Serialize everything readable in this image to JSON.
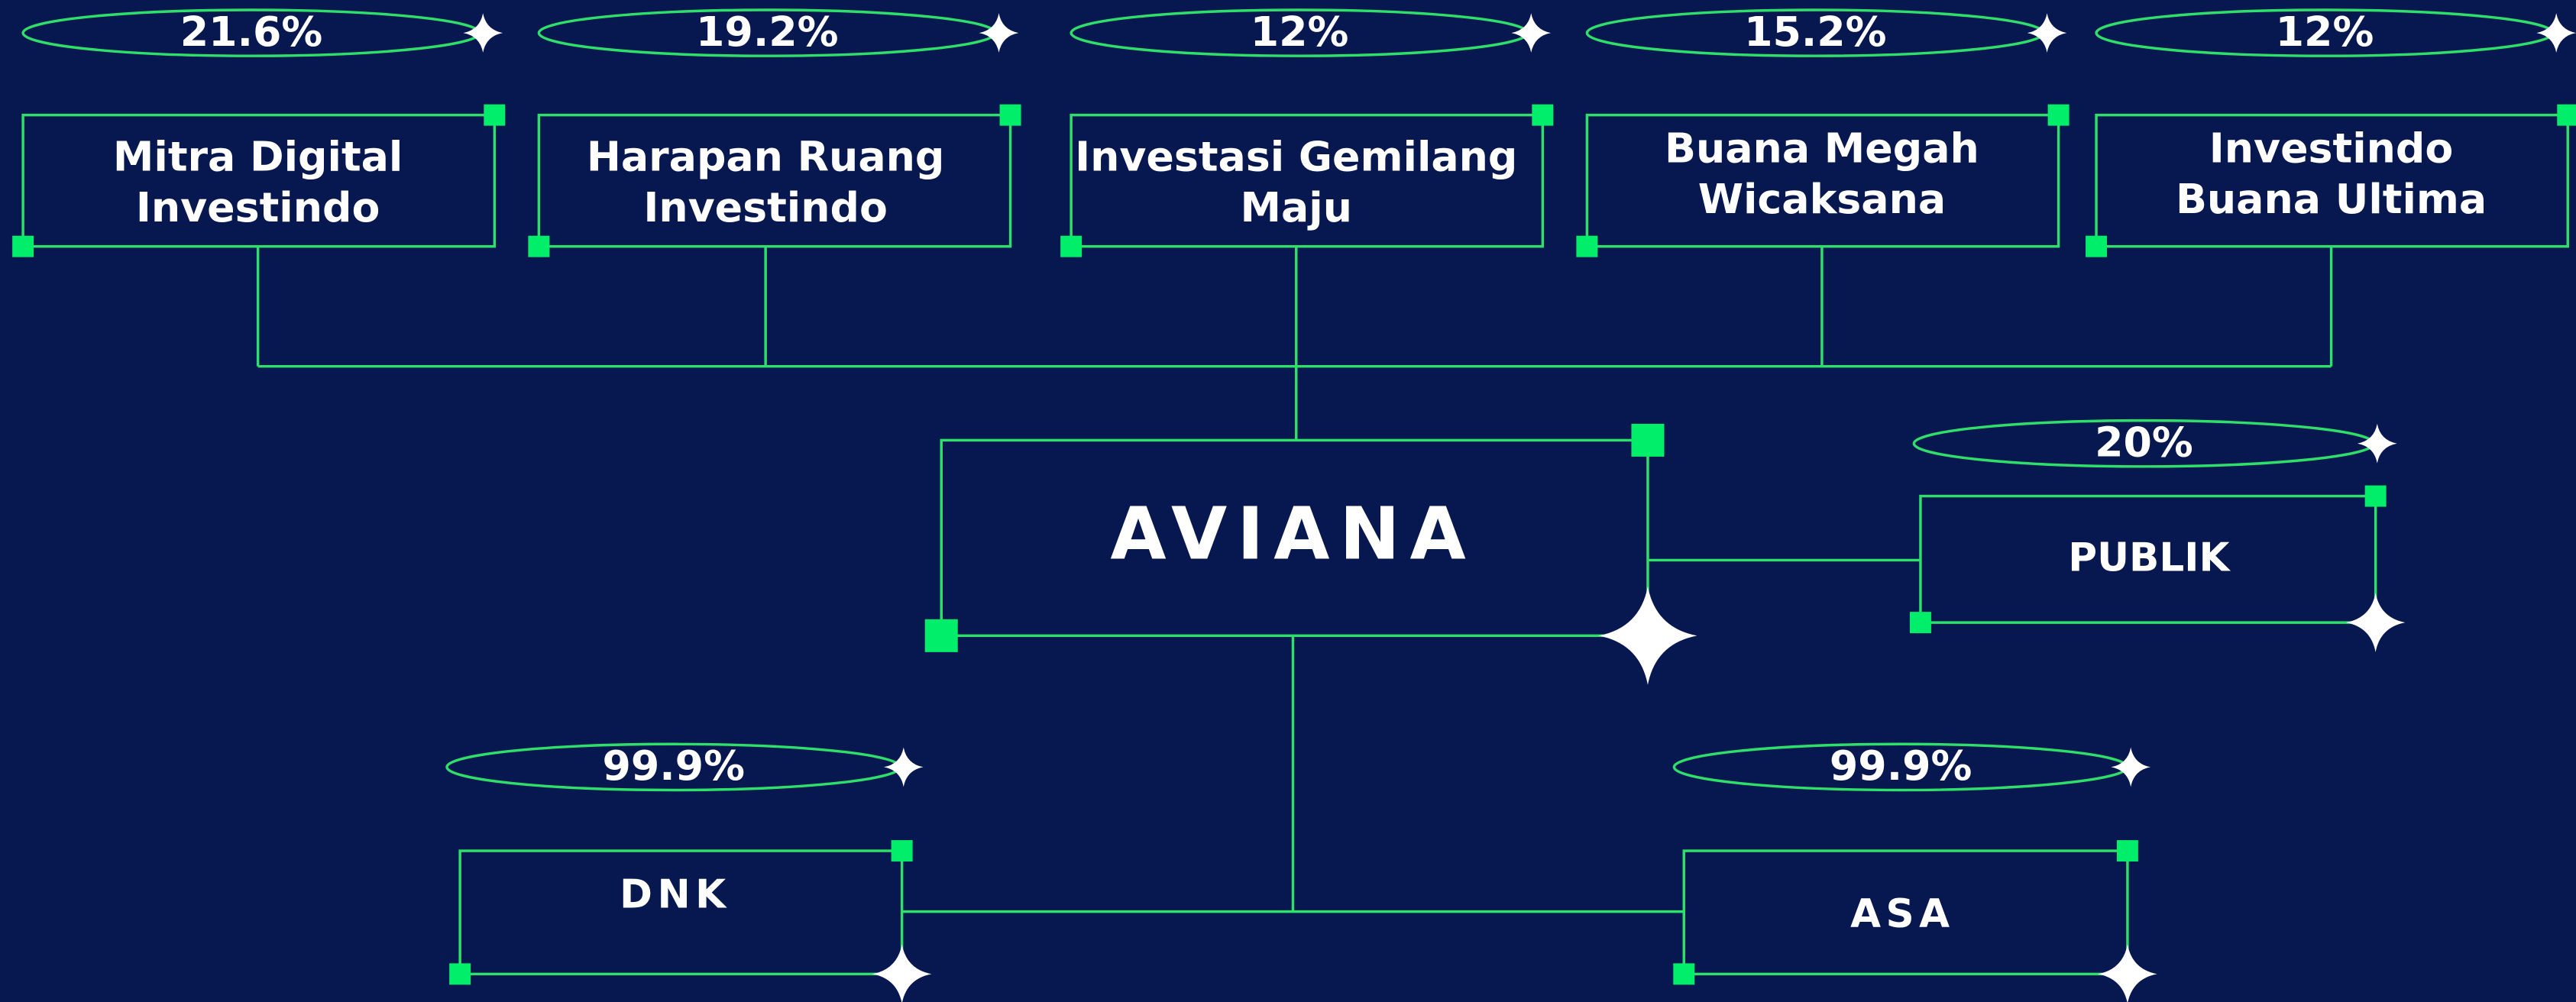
{
  "shareholders": [
    {
      "name": [
        "Mitra Digital",
        "Investindo"
      ],
      "share": "21.6%"
    },
    {
      "name": [
        "Harapan Ruang",
        "Investindo"
      ],
      "share": "19.2%"
    },
    {
      "name": [
        "Investasi Gemilang",
        "Maju"
      ],
      "share": "12%"
    },
    {
      "name": [
        "Buana Megah",
        "Wicaksana"
      ],
      "share": "15.2%"
    },
    {
      "name": [
        "Investindo",
        "Buana Ultima"
      ],
      "share": "12%"
    }
  ],
  "company": "AVIANA",
  "public": {
    "name": "PUBLIK",
    "share": "20%"
  },
  "subsidiaries": [
    {
      "name": "DNK",
      "share": "99.9%"
    },
    {
      "name": "ASA",
      "share": "99.9%"
    }
  ]
}
